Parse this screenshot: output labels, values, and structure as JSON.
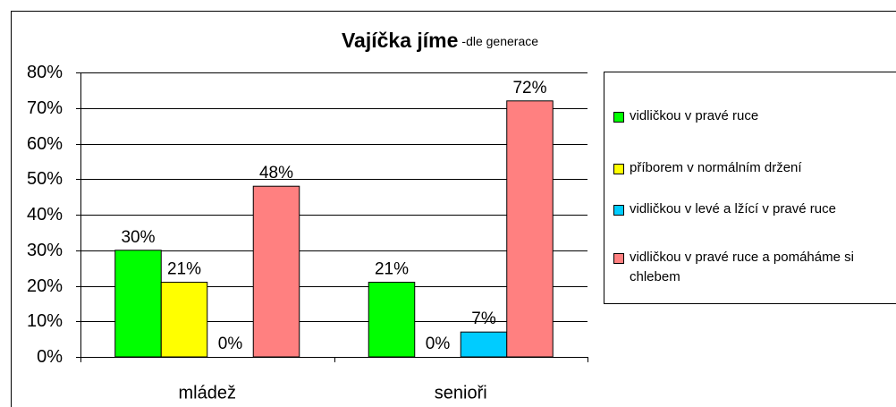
{
  "chart_data": {
    "type": "bar",
    "title": "Vajíčka jíme",
    "subtitle": "-dle generace",
    "categories": [
      "mládež",
      "senioři"
    ],
    "series": [
      {
        "name": "vidličkou v pravé ruce",
        "color": "#00ff00",
        "values": [
          30,
          21
        ],
        "value_labels": [
          "30%",
          "21%"
        ]
      },
      {
        "name": "příborem v normálním držení",
        "color": "#ffff00",
        "values": [
          21,
          0
        ],
        "value_labels": [
          "21%",
          "0%"
        ]
      },
      {
        "name": "vidličkou v levé a lžící v pravé ruce",
        "color": "#00ccff",
        "values": [
          0,
          7
        ],
        "value_labels": [
          "0%",
          "7%"
        ]
      },
      {
        "name": "vidličkou v pravé ruce a pomáháme si chlebem",
        "color": "#ff8080",
        "values": [
          48,
          72
        ],
        "value_labels": [
          "48%",
          "72%"
        ]
      }
    ],
    "ylim": [
      0,
      80
    ],
    "yticks": [
      {
        "value": 0,
        "label": "0%"
      },
      {
        "value": 10,
        "label": "10%"
      },
      {
        "value": 20,
        "label": "20%"
      },
      {
        "value": 30,
        "label": "30%"
      },
      {
        "value": 40,
        "label": "40%"
      },
      {
        "value": 50,
        "label": "50%"
      },
      {
        "value": 60,
        "label": "60%"
      },
      {
        "value": 70,
        "label": "70%"
      },
      {
        "value": 80,
        "label": "80%"
      }
    ],
    "grid": true,
    "legend": "right"
  }
}
